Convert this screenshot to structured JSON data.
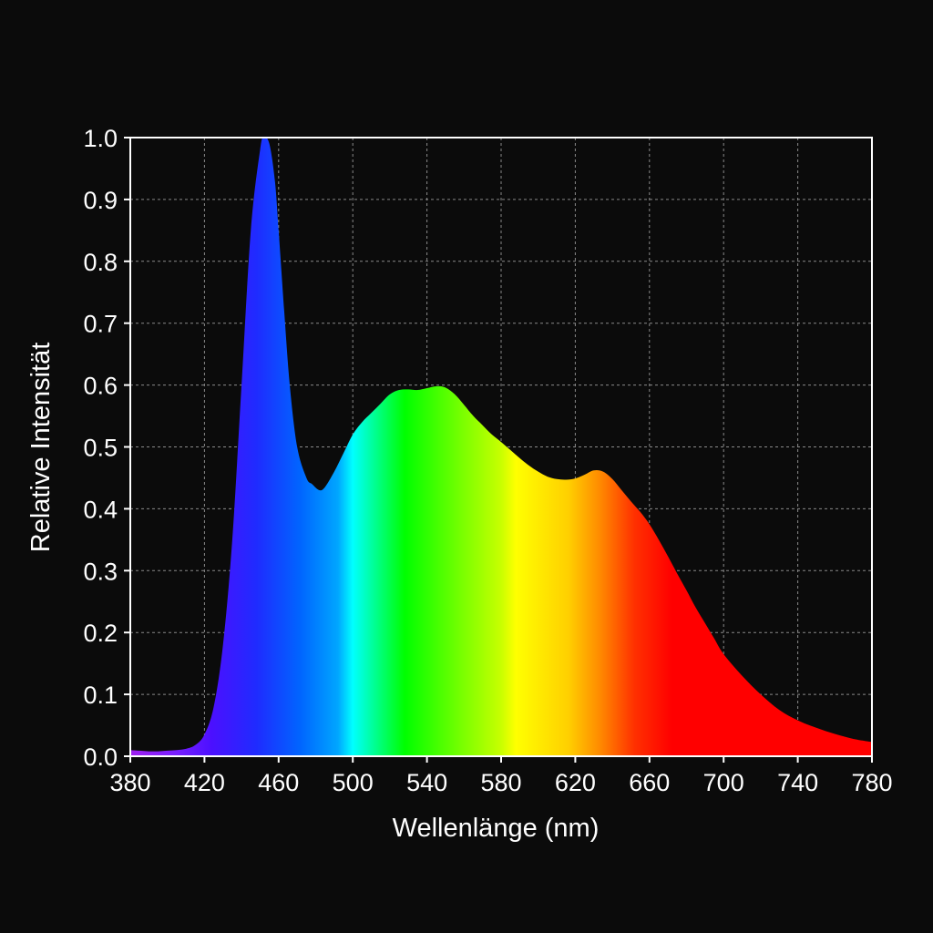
{
  "chart_data": {
    "type": "area",
    "xlabel": "Wellenlänge (nm)",
    "ylabel": "Relative Intensität",
    "xlim": [
      380,
      780
    ],
    "ylim": [
      0.0,
      1.0
    ],
    "grid": true,
    "x_ticks": [
      "380",
      "420",
      "460",
      "500",
      "540",
      "580",
      "620",
      "660",
      "700",
      "740",
      "780"
    ],
    "y_ticks": [
      "0.0",
      "0.1",
      "0.2",
      "0.3",
      "0.4",
      "0.5",
      "0.6",
      "0.7",
      "0.8",
      "0.9",
      "1.0"
    ],
    "fill": "visible-spectrum-gradient",
    "series": [
      {
        "x": [
          380,
          385,
          390,
          395,
          400,
          405,
          410,
          415,
          420,
          425,
          430,
          435,
          440,
          445,
          450,
          452,
          455,
          458,
          460,
          463,
          466,
          470,
          475,
          478,
          482,
          485,
          490,
          495,
          500,
          505,
          510,
          515,
          520,
          525,
          530,
          535,
          540,
          545,
          550,
          555,
          560,
          565,
          570,
          575,
          580,
          585,
          590,
          595,
          600,
          605,
          610,
          615,
          620,
          625,
          630,
          635,
          640,
          645,
          650,
          655,
          660,
          665,
          670,
          675,
          680,
          685,
          690,
          695,
          700,
          710,
          720,
          730,
          740,
          750,
          760,
          770,
          780
        ],
        "y": [
          0.01,
          0.009,
          0.008,
          0.008,
          0.009,
          0.01,
          0.012,
          0.018,
          0.035,
          0.08,
          0.18,
          0.35,
          0.6,
          0.85,
          0.98,
          1.0,
          0.99,
          0.93,
          0.85,
          0.72,
          0.6,
          0.5,
          0.45,
          0.44,
          0.43,
          0.435,
          0.46,
          0.49,
          0.52,
          0.54,
          0.555,
          0.57,
          0.585,
          0.592,
          0.593,
          0.592,
          0.595,
          0.598,
          0.596,
          0.585,
          0.568,
          0.55,
          0.535,
          0.52,
          0.508,
          0.495,
          0.482,
          0.47,
          0.46,
          0.452,
          0.448,
          0.447,
          0.449,
          0.455,
          0.462,
          0.46,
          0.448,
          0.43,
          0.412,
          0.395,
          0.375,
          0.35,
          0.323,
          0.295,
          0.268,
          0.24,
          0.215,
          0.19,
          0.165,
          0.13,
          0.1,
          0.075,
          0.058,
          0.046,
          0.036,
          0.028,
          0.023
        ]
      }
    ]
  },
  "colors": {
    "background": "#0b0b0b",
    "grid": "#8a8a8a",
    "frame": "#ffffff",
    "text": "#ffffff"
  }
}
